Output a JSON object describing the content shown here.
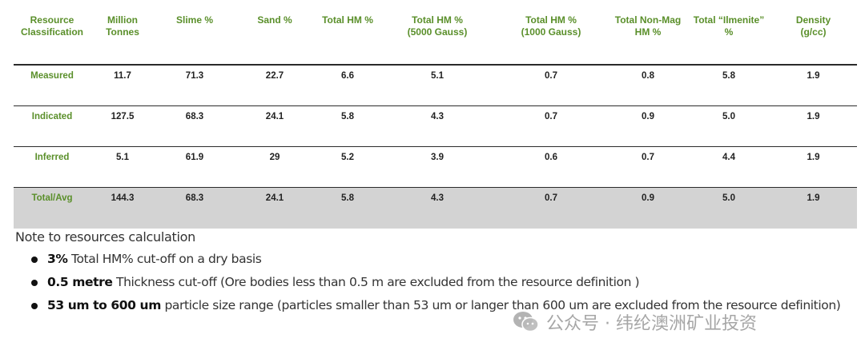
{
  "table": {
    "headers": [
      {
        "line1": "Resource",
        "line2": "Classification"
      },
      {
        "line1": "Million",
        "line2": "Tonnes"
      },
      {
        "line1": "Slime %",
        "line2": ""
      },
      {
        "line1": "Sand %",
        "line2": ""
      },
      {
        "line1": "Total HM %",
        "line2": ""
      },
      {
        "line1": "Total HM %",
        "line2": "(5000 Gauss)"
      },
      {
        "line1": "Total HM %",
        "line2": "(1000 Gauss)"
      },
      {
        "line1": "Total Non-Mag",
        "line2": "HM %"
      },
      {
        "line1": "Total “Ilmenite”",
        "line2": "%"
      },
      {
        "line1": "Density",
        "line2": "(g/cc)"
      }
    ],
    "rows": [
      [
        "Measured",
        "11.7",
        "71.3",
        "22.7",
        "6.6",
        "5.1",
        "0.7",
        "0.8",
        "5.8",
        "1.9"
      ],
      [
        "Indicated",
        "127.5",
        "68.3",
        "24.1",
        "5.8",
        "4.3",
        "0.7",
        "0.9",
        "5.0",
        "1.9"
      ],
      [
        "Inferred",
        "5.1",
        "61.9",
        "29",
        "5.2",
        "3.9",
        "0.6",
        "0.7",
        "4.4",
        "1.9"
      ],
      [
        "Total/Avg",
        "144.3",
        "68.3",
        "24.1",
        "5.8",
        "4.3",
        "0.7",
        "0.9",
        "5.0",
        "1.9"
      ]
    ]
  },
  "notes": {
    "title": "Note to resources calculation",
    "items": [
      {
        "bold": "3%",
        "text": " Total HM% cut-off on a dry basis"
      },
      {
        "bold": "0.5 metre",
        "text": " Thickness cut-off (Ore bodies less than 0.5 m are excluded from the resource definition )"
      },
      {
        "bold": "53 um to 600 um",
        "text": " particle size range (particles smaller than 53 um or langer than 600 um are excluded from the resource definition)"
      }
    ]
  },
  "watermark": {
    "text": "公众号 · 纬纶澳洲矿业投资",
    "icon": "wechat-icon"
  },
  "colors": {
    "header_green": "#5a8f2a",
    "total_row_bg": "#d3d3d3"
  }
}
